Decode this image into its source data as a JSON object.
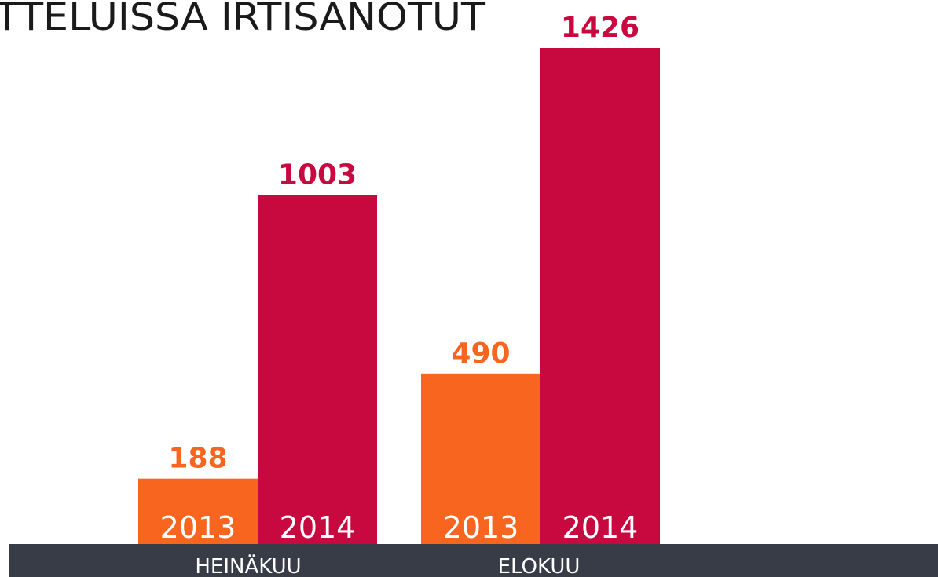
{
  "chart_data": {
    "type": "bar",
    "title": "TTELUISSA IRTISANOTUT",
    "categories": [
      "HEINÄKUU",
      "ELOKUU"
    ],
    "series": [
      {
        "name": "2013",
        "color": "#f7651e",
        "values": [
          188,
          490
        ]
      },
      {
        "name": "2014",
        "color": "#c8093f",
        "values": [
          1003,
          1426
        ]
      }
    ]
  }
}
